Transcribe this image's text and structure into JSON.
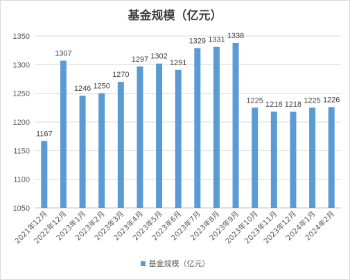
{
  "chart_data": {
    "type": "bar",
    "title": "基金规模（亿元）",
    "categories": [
      "2021年12月",
      "2022年12月",
      "2023年1月",
      "2023年2月",
      "2023年3月",
      "2023年4月",
      "2023年5月",
      "2023年6月",
      "2023年7月",
      "2023年8月",
      "2023年9月",
      "2023年10月",
      "2023年11月",
      "2023年12月",
      "2024年1月",
      "2024年2月"
    ],
    "series": [
      {
        "name": "基金规模（亿元）",
        "values": [
          1167,
          1307,
          1246,
          1250,
          1270,
          1297,
          1302,
          1291,
          1329,
          1331,
          1338,
          1225,
          1218,
          1218,
          1225,
          1226
        ]
      }
    ],
    "ylim": [
      1050,
      1350
    ],
    "yticks": [
      "1050",
      "1100",
      "1150",
      "1200",
      "1250",
      "1300",
      "1350"
    ],
    "grid": true,
    "legend": "bottom",
    "bar_color": "#5b9bd5"
  }
}
